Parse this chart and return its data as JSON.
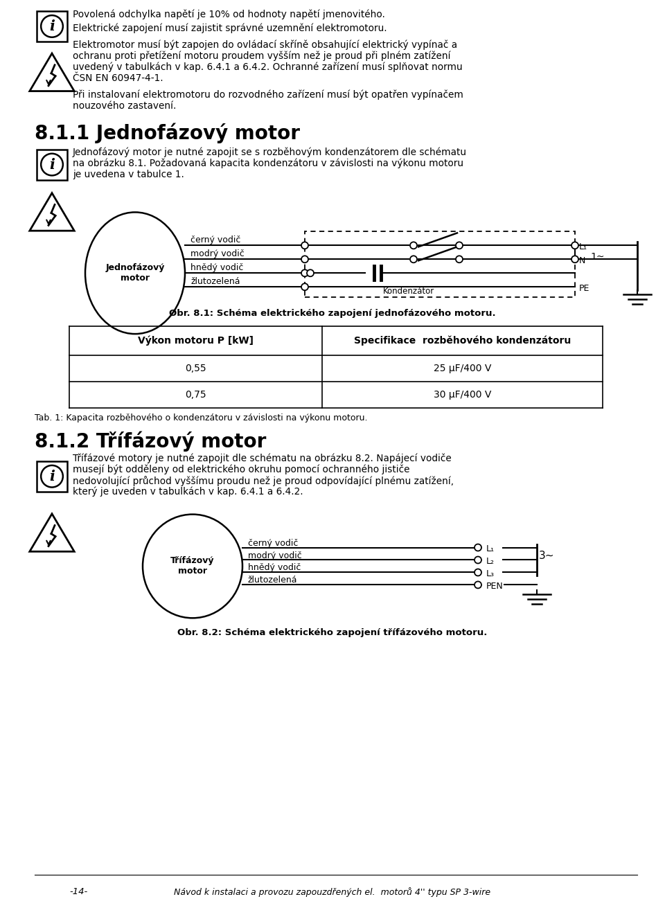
{
  "bg_color": "#ffffff",
  "text_color": "#1a1a1a",
  "page_width": 9.6,
  "page_height": 12.98,
  "top_text_line1": "Povolená odchylka napětí je 10% od hodnoty napětí jmenovitého.",
  "top_text_line2": "Elektrické zapojení musí zajistit správné uzemnění elektromotoru.",
  "top_text_warn": "Elektromotor musí být zapojen do ovládací skříně obsahující elektrický vypínač a ochranu proti přetížení motoru proudem vyšším než je proud při plném zatížení uvedený v tabulkách v kap. 6.4.1 a 6.4.2. Ochranné zařízení musí splňovat normu ČSN EN 60947-4-1.",
  "top_text_warn2": "Při instalovaní elektromotoru do rozvodného zařízení musí být opatřen vypínačem nouzového zastavení.",
  "section_811_title": "8.1.1 Jednofázový motor",
  "section_811_text": "Jednofázový motor je nutné zapojit se s rozběhovým kondenzátorem dle schématu na obrázku 8.1. Požadovaná kapacita kondenzátoru v závislosti na výkonu motoru je uvedena v tabulce 1.",
  "wire1_labels": [
    "černý vodič",
    "modrý vodič",
    "hnědý vodič",
    "žlutozelená"
  ],
  "wire1_right_labels": [
    "L₁",
    "N",
    "PE"
  ],
  "kondenzator_label": "Kondenzátor",
  "phase1_label": "1~",
  "motor1_label": "Jednofázový\nmotor",
  "fig1_caption": "Obr. 8.1: Schéma elektrického zapojení jednofázového motoru.",
  "table1_header": [
    "Výkon motoru P [kW]",
    "Specifikace  rozběhového kondenzátoru"
  ],
  "table1_rows": [
    [
      "0,55",
      "25 μF/400 V"
    ],
    [
      "0,75",
      "30 μF/400 V"
    ]
  ],
  "tab1_caption": "Tab. 1: Kapacita rozběhového o kondenzátoru v závislosti na výkonu motoru.",
  "section_812_title": "8.1.2 Třífázový motor",
  "section_812_text": "Třífázové motory je nutné zapojit dle schématu na obrázku 8.2. Napájecí vodiče musejí být odděleny od elektrického okruhu pomocí ochranného jističe nedovolující průchod vyššímu proudu než je proud odpovídající plnému zatížení, který je uveden v tabulkách v kap. 6.4.1 a 6.4.2.",
  "wire2_labels": [
    "černý vodič",
    "modrý vodič",
    "hnědý vodič",
    "žlutozelená"
  ],
  "wire2_right_labels": [
    "L₁",
    "L₂",
    "L₃",
    "PEN"
  ],
  "motor2_label": "Třífázový\nmotor",
  "phase3_label": "3~",
  "fig2_caption": "Obr. 8.2: Schéma elektrického zapojení třífázového motoru.",
  "footer_line": "Návod k instalaci a provozu zapouzdřených el.  motorů 4'' typu SP 3-wire",
  "footer_page": "-14-"
}
